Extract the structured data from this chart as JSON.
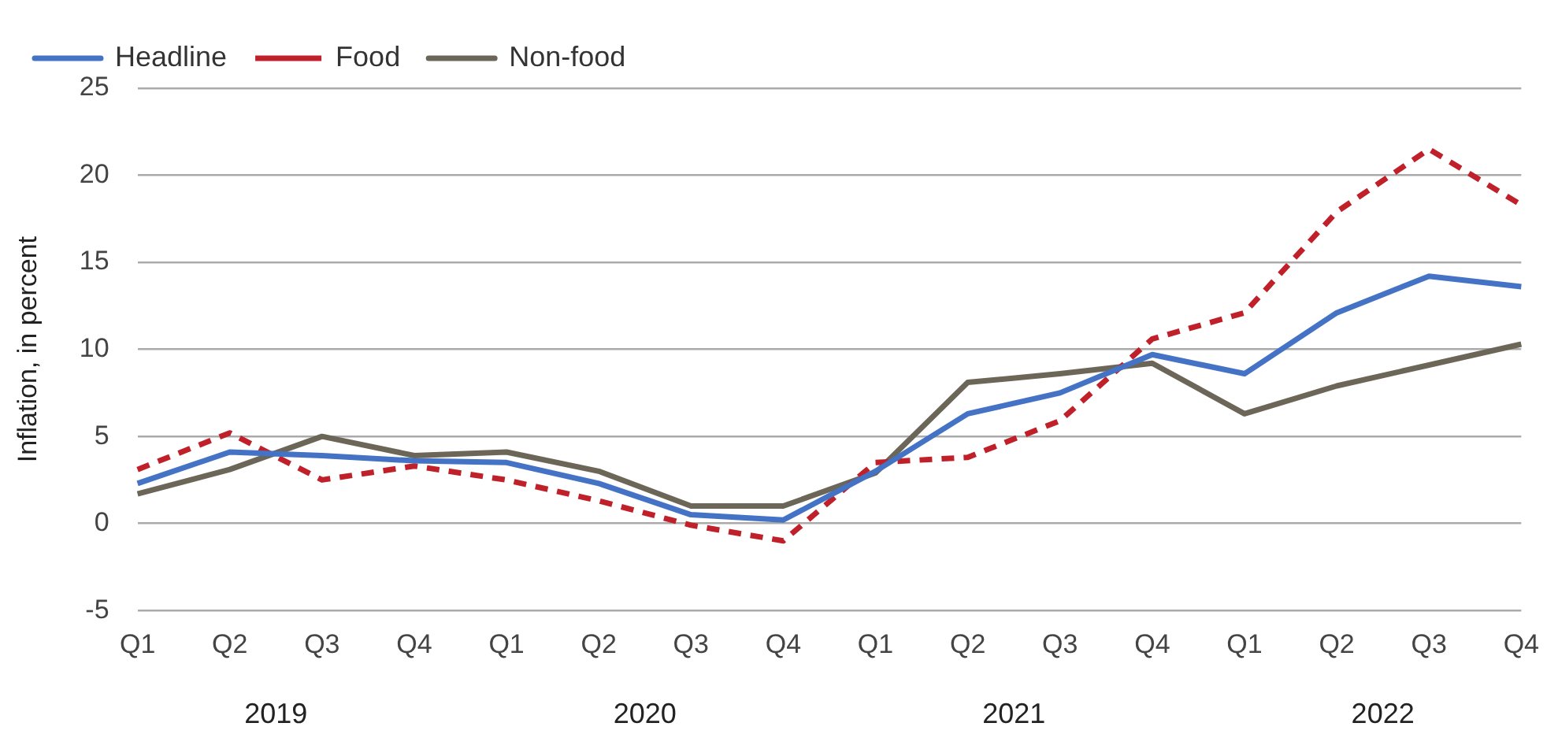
{
  "chart_data": {
    "type": "line",
    "ylabel": "Inflation, in percent",
    "categories": [
      "Q1",
      "Q2",
      "Q3",
      "Q4",
      "Q1",
      "Q2",
      "Q3",
      "Q4",
      "Q1",
      "Q2",
      "Q3",
      "Q4",
      "Q1",
      "Q2",
      "Q3",
      "Q4"
    ],
    "annotations": [
      "2019",
      "2020",
      "2021",
      "2022"
    ],
    "series": [
      {
        "name": "Headline",
        "color": "#4472c4",
        "line_style": "solid",
        "values": [
          2.3,
          4.1,
          3.9,
          3.6,
          3.5,
          2.3,
          0.5,
          0.2,
          3.0,
          6.3,
          7.5,
          9.7,
          8.6,
          12.1,
          14.2,
          13.6
        ]
      },
      {
        "name": "Food",
        "color": "#c0202a",
        "line_style": "dashed",
        "values": [
          3.1,
          5.2,
          2.5,
          3.3,
          2.5,
          1.3,
          -0.1,
          -1.0,
          3.5,
          3.8,
          5.9,
          10.6,
          12.1,
          17.9,
          21.5,
          18.3
        ]
      },
      {
        "name": "Non-food",
        "color": "#6b6657",
        "line_style": "solid",
        "values": [
          1.7,
          3.1,
          5.0,
          3.9,
          4.1,
          3.0,
          1.0,
          1.0,
          2.9,
          8.1,
          8.6,
          9.2,
          6.3,
          7.9,
          9.1,
          10.3
        ]
      }
    ],
    "ylim": [
      -5,
      25
    ],
    "yticks": [
      -5,
      0,
      5,
      10,
      15,
      20,
      25
    ],
    "grid": "y",
    "legend": "top left",
    "marker": "none"
  }
}
